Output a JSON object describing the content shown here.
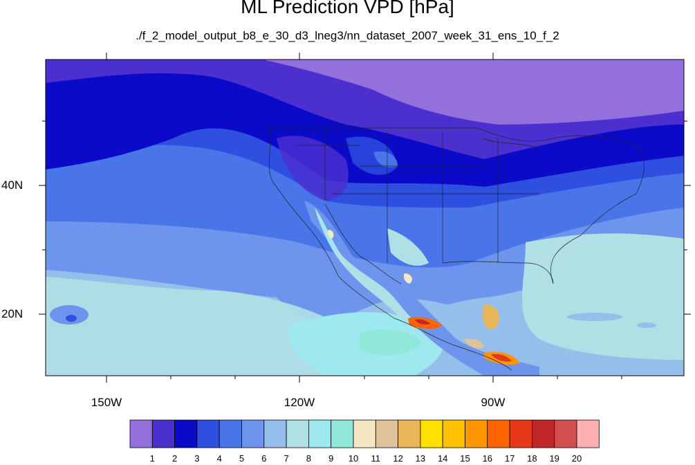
{
  "title": "ML Prediction VPD [hPa]",
  "subtitle": "./f_2_model_output_b8_e_30_d3_lneg3/nn_dataset_2007_week_31_ens_10_f_2",
  "lat_labels": [
    "40N",
    "20N"
  ],
  "lon_labels": [
    "150W",
    "120W",
    "90W"
  ],
  "colorbar": {
    "labels": [
      "1",
      "2",
      "3",
      "4",
      "5",
      "6",
      "7",
      "8",
      "9",
      "10",
      "11",
      "12",
      "13",
      "14",
      "15",
      "16",
      "17",
      "18",
      "19",
      "20"
    ],
    "colors": [
      "#9370db",
      "#4b2fcf",
      "#0a0ac8",
      "#2e4fe0",
      "#4a75e8",
      "#6d95ee",
      "#94bfea",
      "#b0e0e6",
      "#9ee8f0",
      "#90e8d8",
      "#f5e6c4",
      "#dfc29a",
      "#e8b858",
      "#ffe000",
      "#ffc000",
      "#ff9600",
      "#ff6400",
      "#e8381a",
      "#c02828",
      "#d05050",
      "#ffb0b0"
    ]
  }
}
